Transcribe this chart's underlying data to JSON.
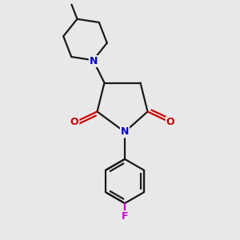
{
  "background_color": "#e8e8e8",
  "bond_color": "#1a1a1a",
  "nitrogen_color": "#0000cc",
  "oxygen_color": "#cc0000",
  "fluorine_color": "#cc00cc",
  "line_width": 1.6,
  "figsize": [
    3.0,
    3.0
  ],
  "dpi": 100,
  "xlim": [
    0,
    10
  ],
  "ylim": [
    0,
    10
  ]
}
